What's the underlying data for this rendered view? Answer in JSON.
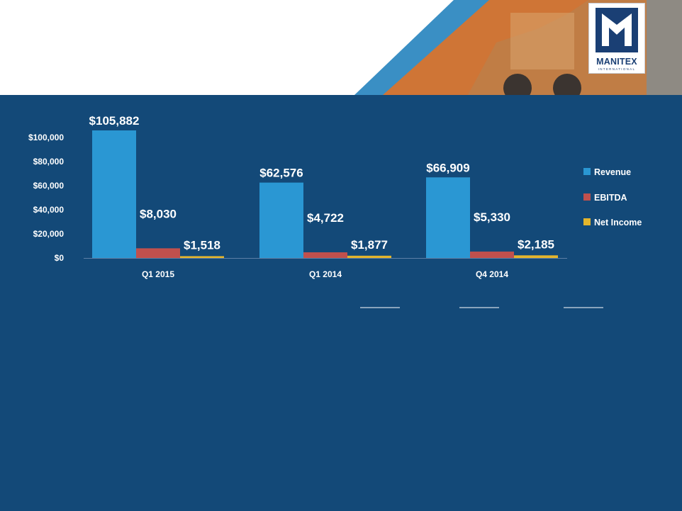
{
  "colors": {
    "panel": "#134978",
    "revenue": "#2a97d3",
    "ebitda": "#c0504d",
    "net_income": "#e3b52c",
    "text": "#ffffff",
    "header_orange": "#cf7536",
    "header_blue": "#3a8fc4"
  },
  "logo": {
    "name": "MANITEX",
    "subtitle": "INTERNATIONAL"
  },
  "chart_data": {
    "type": "bar",
    "categories": [
      "Q1 2015",
      "Q1 2014",
      "Q4 2014"
    ],
    "series": [
      {
        "name": "Revenue",
        "values": [
          105882,
          62576,
          66909
        ],
        "labels": [
          "$105,882",
          "$62,576",
          "$66,909"
        ]
      },
      {
        "name": "EBITDA",
        "values": [
          8030,
          4722,
          5330
        ],
        "labels": [
          "$8,030",
          "$4,722",
          "$5,330"
        ]
      },
      {
        "name": "Net Income",
        "values": [
          1518,
          1877,
          2185
        ],
        "labels": [
          "$1,518",
          "$1,877",
          "$2,185"
        ]
      }
    ],
    "yticks": [
      {
        "value": 0,
        "label": "$0"
      },
      {
        "value": 20000,
        "label": "$20,000"
      },
      {
        "value": 40000,
        "label": "$40,000"
      },
      {
        "value": 60000,
        "label": "$60,000"
      },
      {
        "value": 80000,
        "label": "$80,000"
      },
      {
        "value": 100000,
        "label": "$100,000"
      }
    ],
    "ylim": [
      0,
      100000
    ],
    "grid": false,
    "legend_position": "right",
    "title": "",
    "xlabel": "",
    "ylabel": ""
  }
}
